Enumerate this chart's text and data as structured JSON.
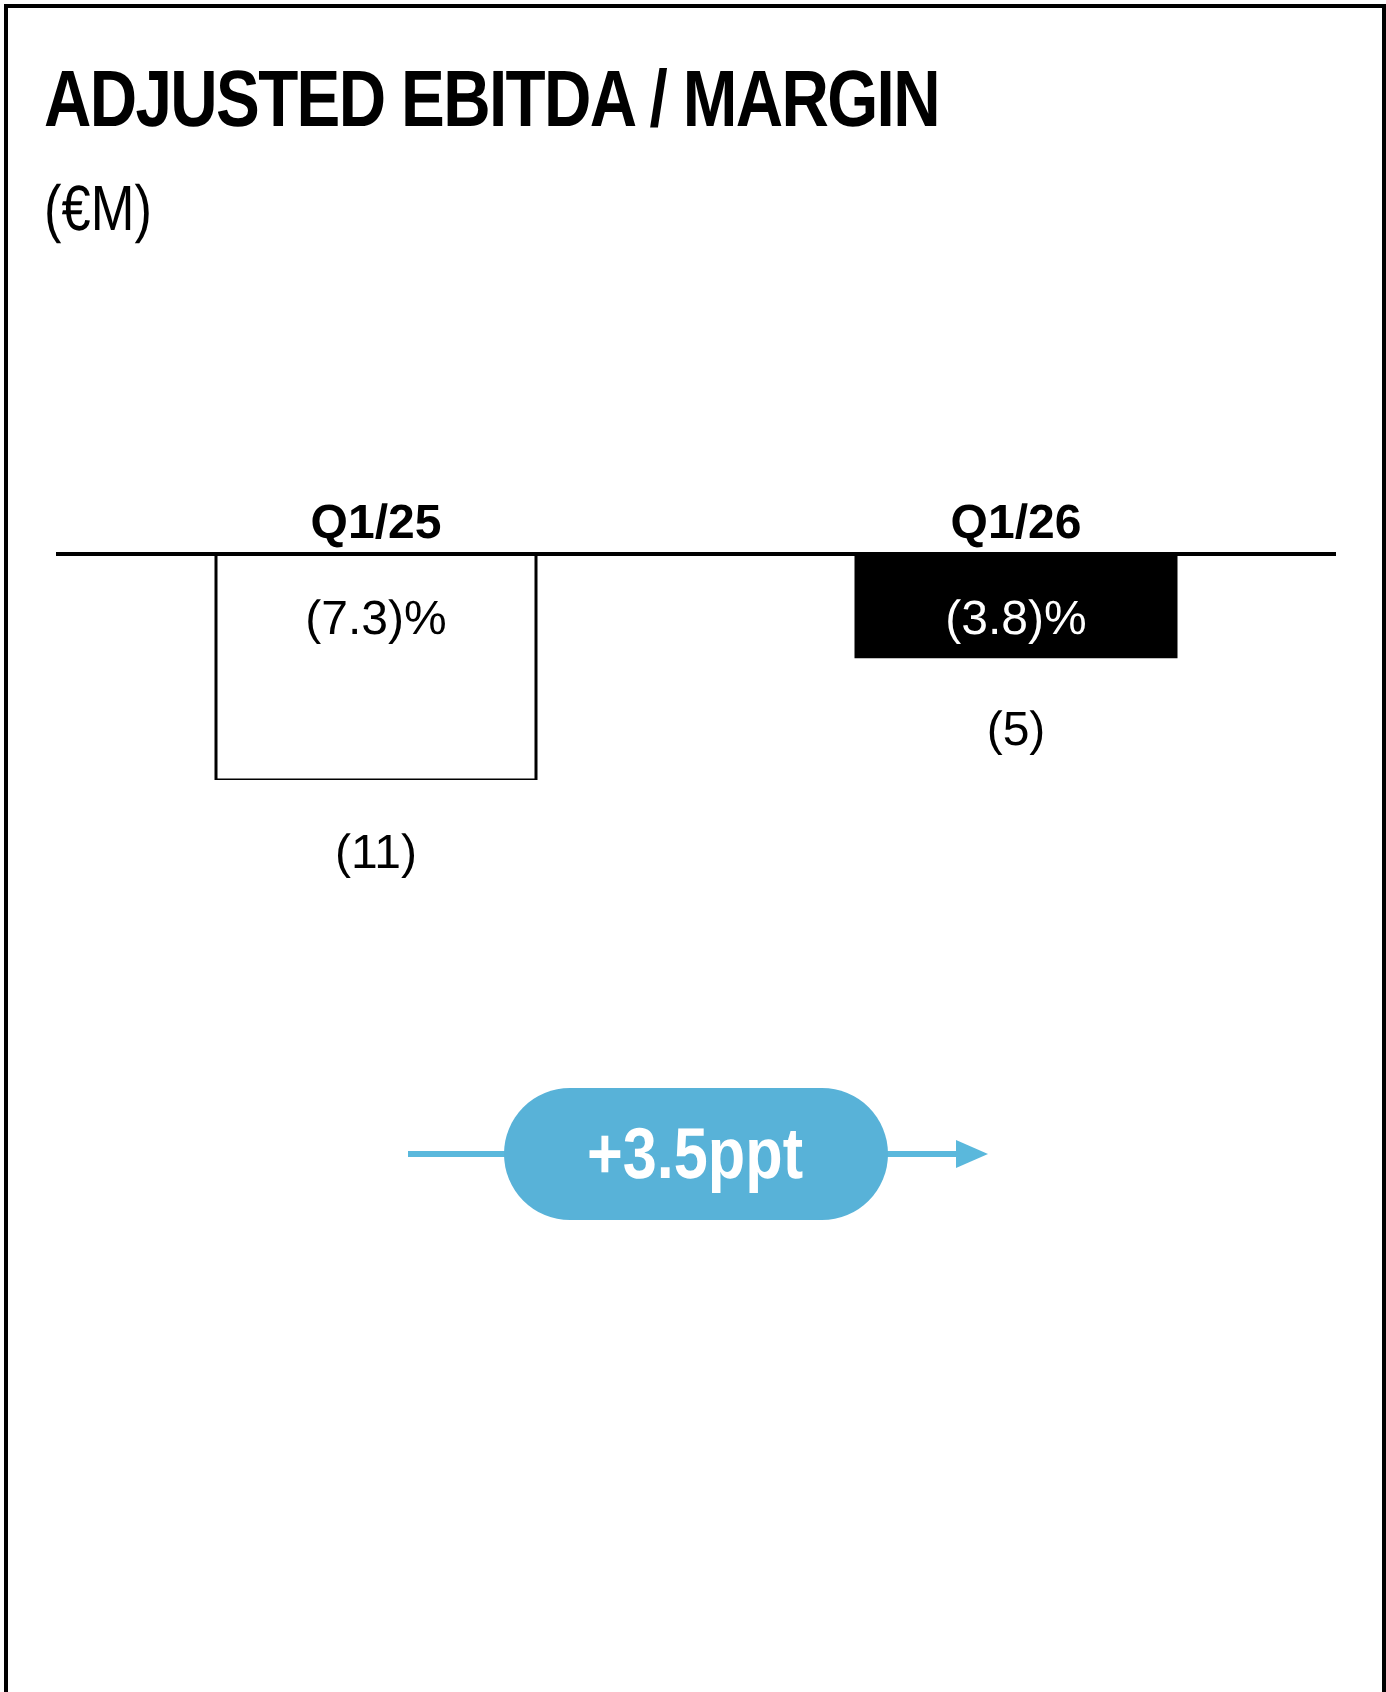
{
  "chart_data": {
    "type": "bar",
    "title": "ADJUSTED EBITDA / MARGIN",
    "subtitle": "(€M)",
    "categories": [
      "Q1/25",
      "Q1/26"
    ],
    "values": [
      -11,
      -5
    ],
    "colors": [
      "#ffffff",
      "#000000"
    ],
    "value_labels": [
      "(11)",
      "(5)"
    ],
    "annotations": [
      "(7.3)%",
      "(3.8)%",
      "+3.5ppt"
    ]
  }
}
